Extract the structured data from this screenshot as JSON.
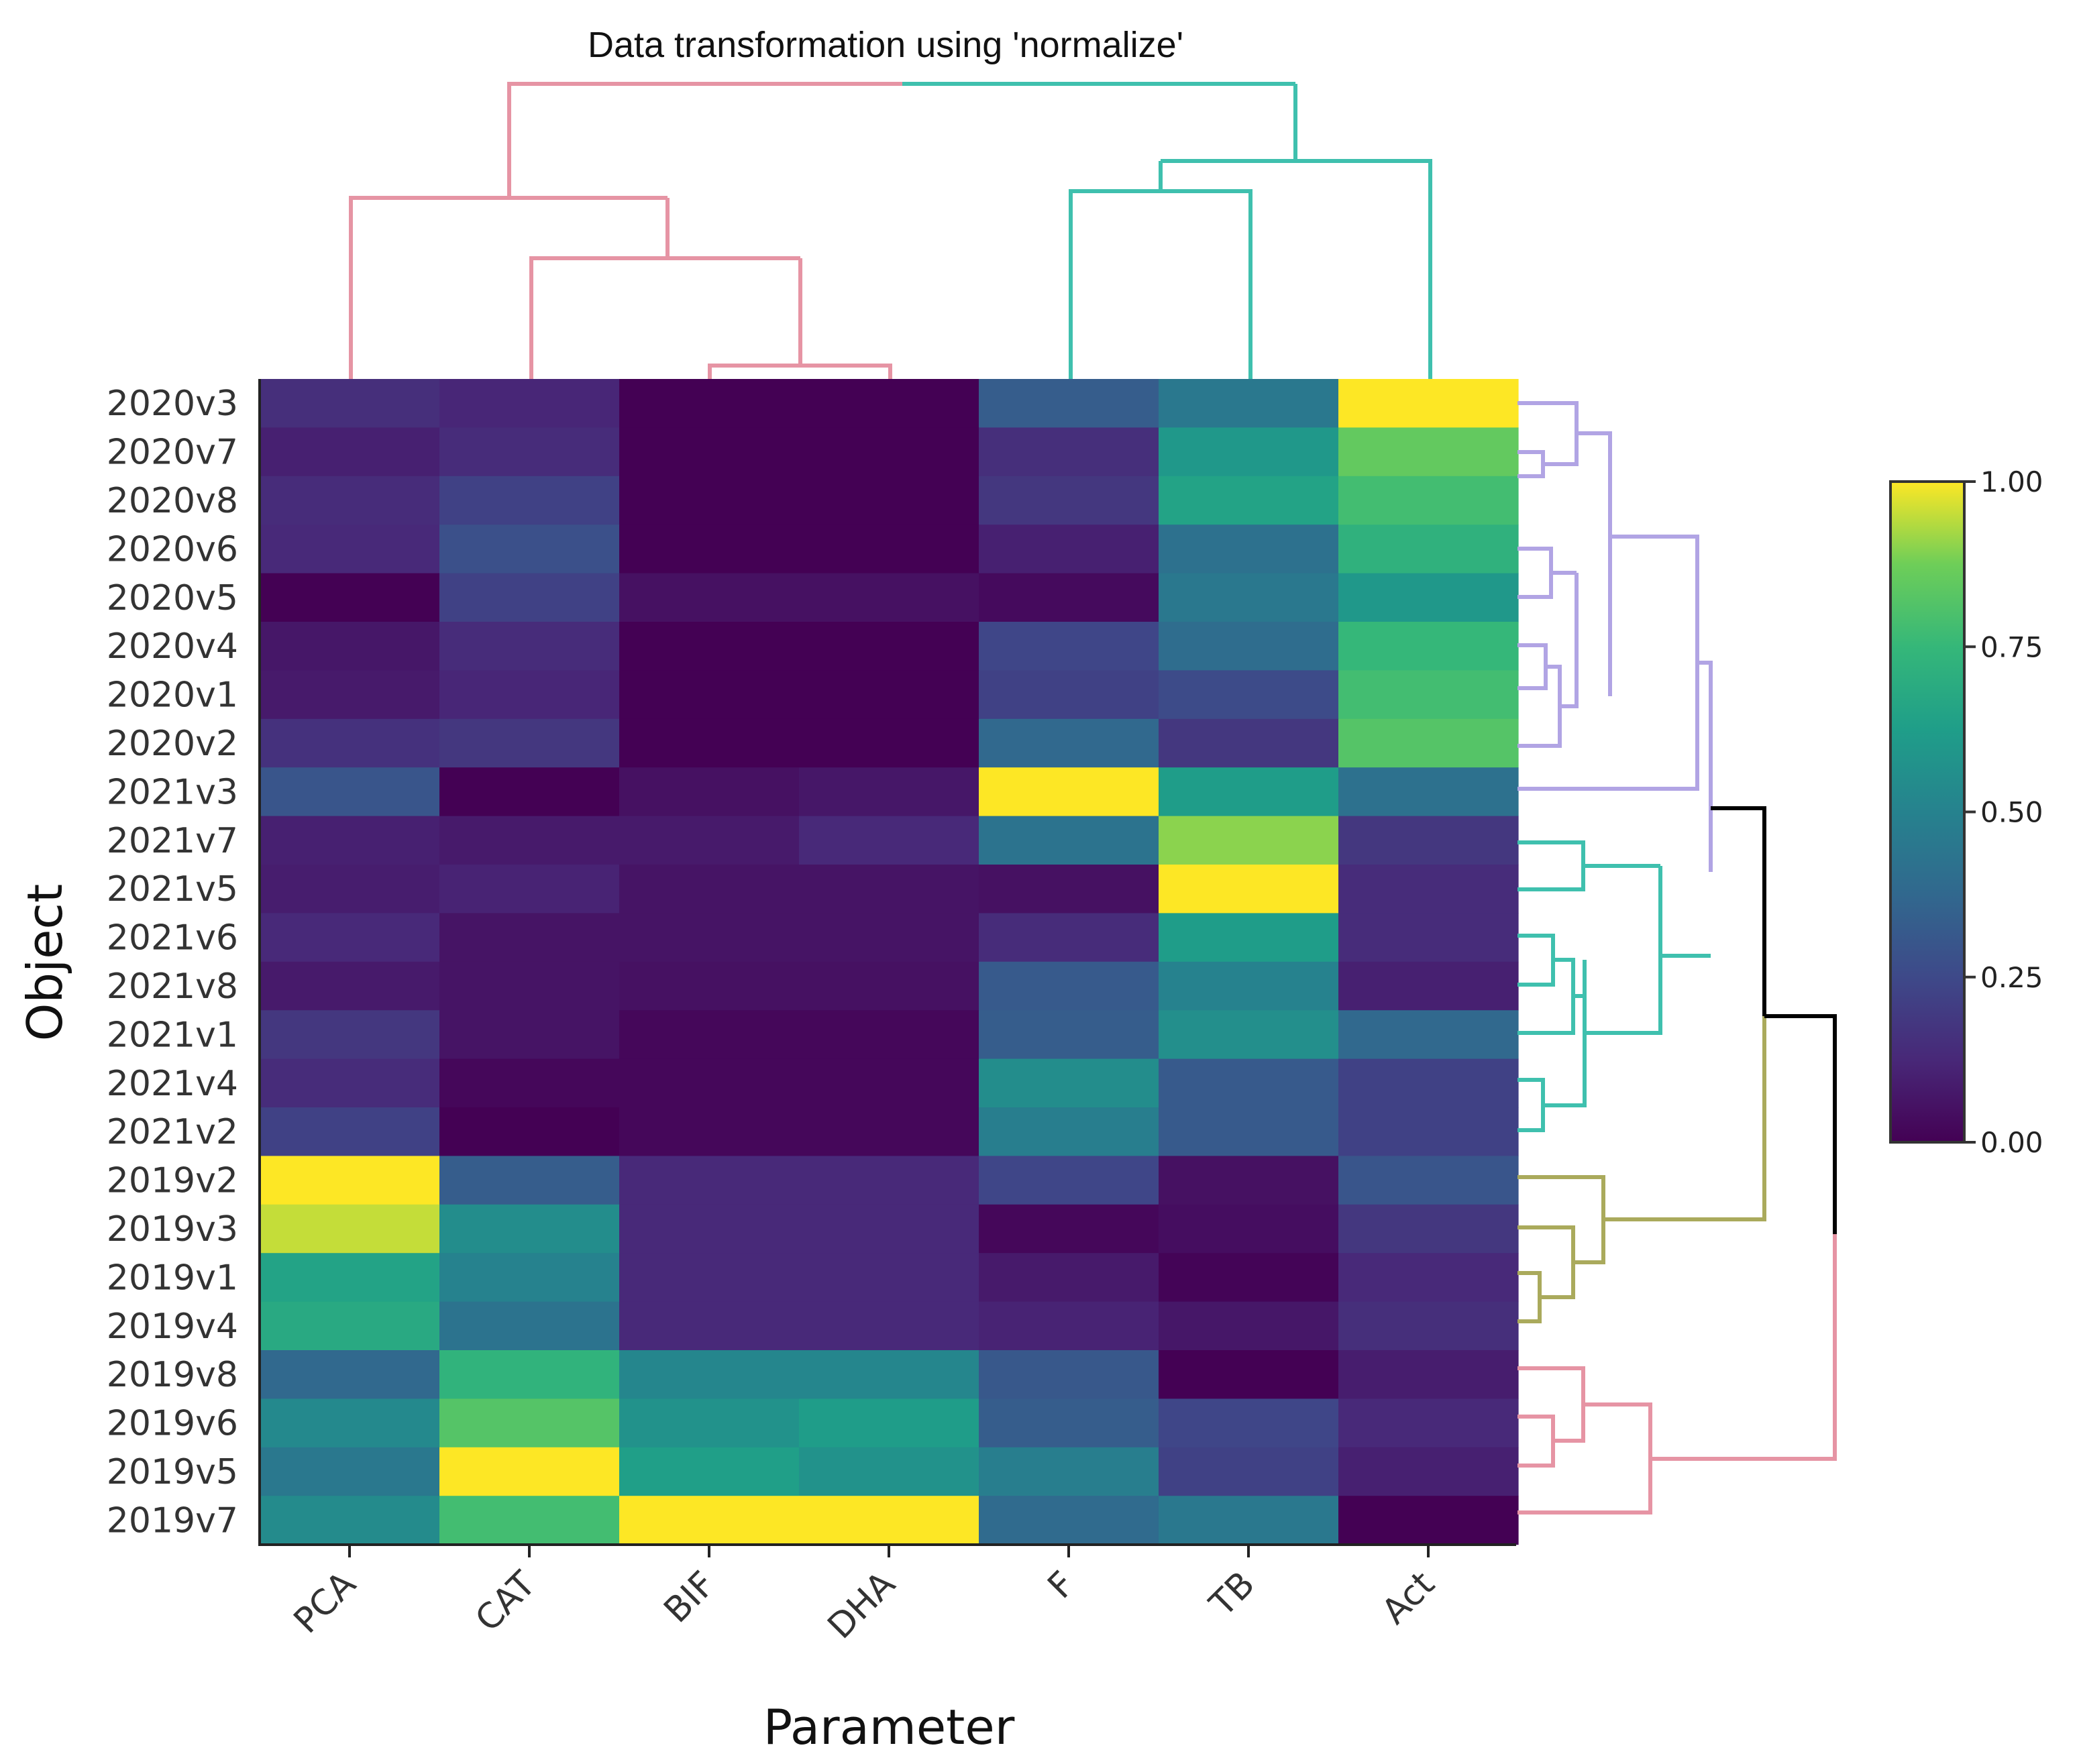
{
  "chart_data": {
    "type": "heatmap",
    "title": "Data transformation using 'normalize'",
    "xlabel": "Parameter",
    "ylabel": "Object",
    "columns": [
      "PCA",
      "CAT",
      "BIF",
      "DHA",
      "F",
      "TB",
      "Act"
    ],
    "rows": [
      "2020v3",
      "2020v7",
      "2020v8",
      "2020v6",
      "2020v5",
      "2020v4",
      "2020v1",
      "2020v2",
      "2021v3",
      "2021v7",
      "2021v5",
      "2021v6",
      "2021v8",
      "2021v1",
      "2021v4",
      "2021v2",
      "2019v2",
      "2019v3",
      "2019v1",
      "2019v4",
      "2019v8",
      "2019v6",
      "2019v5",
      "2019v7"
    ],
    "values": [
      [
        0.15,
        0.12,
        0.0,
        0.0,
        0.33,
        0.45,
        1.0
      ],
      [
        0.1,
        0.14,
        0.0,
        0.0,
        0.15,
        0.6,
        0.85
      ],
      [
        0.14,
        0.22,
        0.0,
        0.0,
        0.18,
        0.65,
        0.78
      ],
      [
        0.13,
        0.28,
        0.0,
        0.0,
        0.1,
        0.42,
        0.72
      ],
      [
        0.0,
        0.22,
        0.05,
        0.05,
        0.03,
        0.45,
        0.6
      ],
      [
        0.07,
        0.14,
        0.0,
        0.0,
        0.24,
        0.4,
        0.75
      ],
      [
        0.08,
        0.12,
        0.0,
        0.0,
        0.22,
        0.26,
        0.78
      ],
      [
        0.16,
        0.18,
        0.0,
        0.0,
        0.38,
        0.18,
        0.82
      ],
      [
        0.3,
        0.0,
        0.05,
        0.07,
        1.0,
        0.62,
        0.42
      ],
      [
        0.1,
        0.08,
        0.08,
        0.13,
        0.43,
        0.9,
        0.18
      ],
      [
        0.09,
        0.11,
        0.06,
        0.06,
        0.05,
        1.0,
        0.14
      ],
      [
        0.13,
        0.06,
        0.06,
        0.06,
        0.14,
        0.62,
        0.14
      ],
      [
        0.08,
        0.06,
        0.05,
        0.05,
        0.32,
        0.5,
        0.1
      ],
      [
        0.18,
        0.06,
        0.02,
        0.02,
        0.33,
        0.56,
        0.38
      ],
      [
        0.14,
        0.02,
        0.02,
        0.02,
        0.55,
        0.32,
        0.22
      ],
      [
        0.22,
        0.0,
        0.02,
        0.02,
        0.48,
        0.32,
        0.22
      ],
      [
        1.0,
        0.33,
        0.13,
        0.13,
        0.24,
        0.05,
        0.3
      ],
      [
        0.95,
        0.55,
        0.13,
        0.13,
        0.02,
        0.04,
        0.18
      ],
      [
        0.65,
        0.5,
        0.13,
        0.13,
        0.08,
        0.01,
        0.13
      ],
      [
        0.68,
        0.43,
        0.13,
        0.13,
        0.11,
        0.07,
        0.15
      ],
      [
        0.38,
        0.73,
        0.52,
        0.52,
        0.31,
        0.0,
        0.09
      ],
      [
        0.53,
        0.82,
        0.57,
        0.62,
        0.33,
        0.24,
        0.13
      ],
      [
        0.45,
        1.0,
        0.63,
        0.57,
        0.48,
        0.22,
        0.1
      ],
      [
        0.54,
        0.78,
        1.0,
        1.0,
        0.39,
        0.45,
        0.0
      ]
    ],
    "colorscale": "viridis",
    "zlim": [
      0,
      1
    ],
    "colorbar_ticks": [
      "0.00",
      "0.25",
      "0.50",
      "0.75",
      "1.00"
    ],
    "dendrogram_colors": {
      "cluster_pink": "#e694a4",
      "cluster_teal": "#3fc0ae",
      "cluster_lavender": "#b1a4e4",
      "cluster_olive": "#aaaa5c",
      "root": "#000000"
    }
  }
}
